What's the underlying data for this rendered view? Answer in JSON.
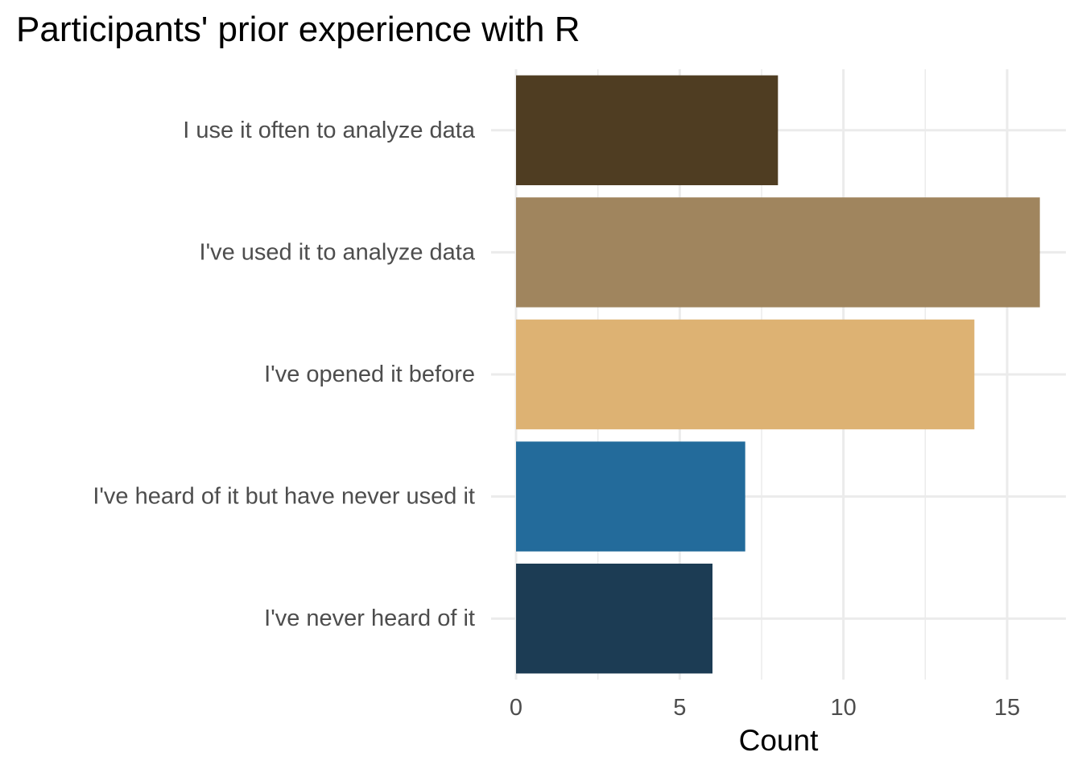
{
  "chart_data": {
    "type": "bar",
    "orientation": "horizontal",
    "title": "Participants' prior experience with R",
    "xlabel": "Count",
    "ylabel": "",
    "categories": [
      "I use it often to analyze data",
      "I've used it to analyze data",
      "I've opened it before",
      "I've heard of it but have never used it",
      "I've never heard of it"
    ],
    "values": [
      8,
      16,
      14,
      7,
      6
    ],
    "colors": [
      "#4f3d22",
      "#a0855e",
      "#ddb273",
      "#236b9b",
      "#1c3c54"
    ],
    "xlim": [
      0,
      16.3
    ],
    "xticks": [
      0,
      5,
      10,
      15
    ],
    "xtick_labels": [
      "0",
      "5",
      "10",
      "15"
    ],
    "grid": true,
    "legend": "none"
  }
}
